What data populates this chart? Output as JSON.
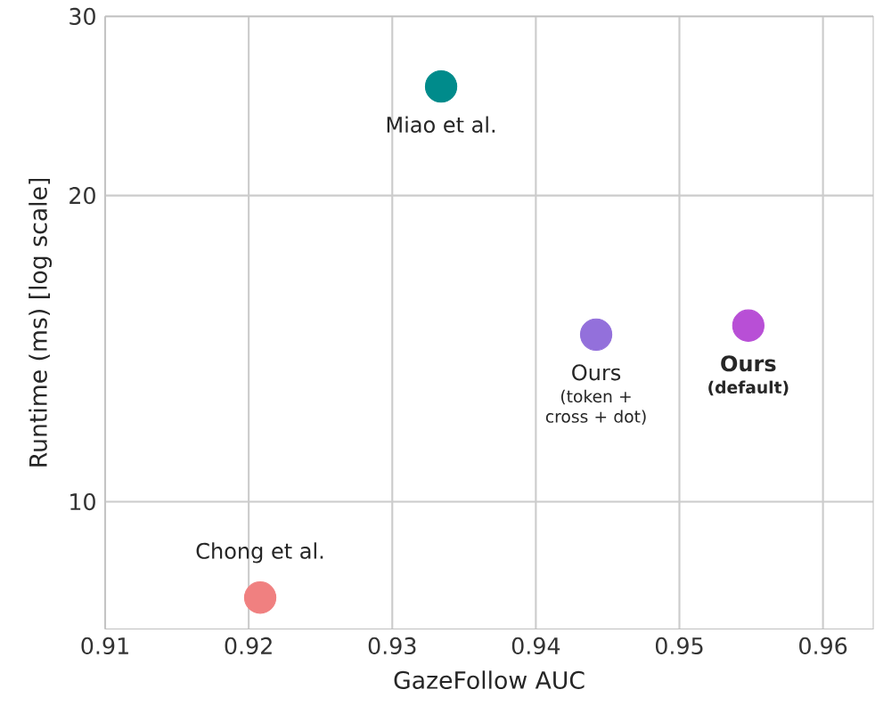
{
  "chart_data": {
    "type": "scatter",
    "xlabel": "GazeFollow AUC",
    "ylabel": "Runtime (ms) [log scale]",
    "log": "y",
    "grid": true,
    "xlim": [
      0.91,
      0.9635
    ],
    "xticks": [
      0.91,
      0.92,
      0.93,
      0.94,
      0.95,
      0.96
    ],
    "ylim": [
      7.5,
      30
    ],
    "yticks": [
      10,
      20,
      30
    ],
    "series": [
      {
        "name": "Miao et al.",
        "color": "#008b8b",
        "x": [
          0.9334
        ],
        "values": [
          25.6
        ]
      },
      {
        "name": "Chong et al.",
        "color": "#f08080",
        "x": [
          0.9208
        ],
        "values": [
          8.05
        ]
      },
      {
        "name": "Ours",
        "color": "#9370db",
        "x": [
          0.9442
        ],
        "values": [
          14.6
        ]
      },
      {
        "name": "**Ours**",
        "color": "#b84fd6",
        "x": [
          0.9548
        ],
        "values": [
          14.9
        ]
      }
    ],
    "annotations": [
      "(token + cross + dot)",
      "**(default)**"
    ]
  }
}
